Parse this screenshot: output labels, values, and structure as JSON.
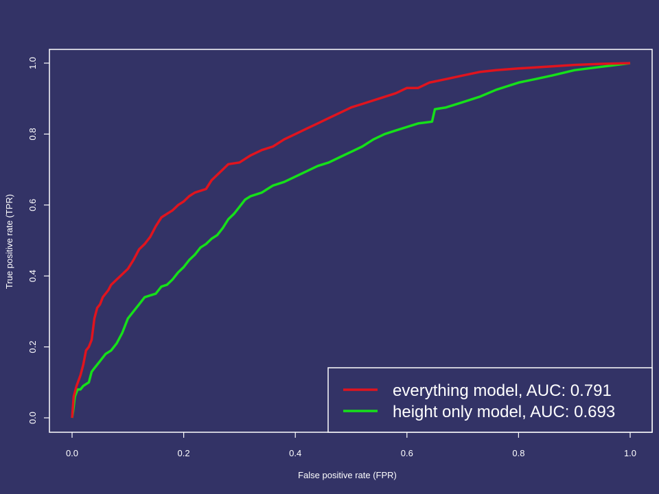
{
  "colors": {
    "background": "#333366",
    "foreground": "#ffffff",
    "everything": "#e0141e",
    "height_only": "#16e01a"
  },
  "chart_data": {
    "type": "line",
    "title": "",
    "xlabel": "False positive rate (FPR)",
    "ylabel": "True positive rate (TPR)",
    "xlim": [
      0,
      1
    ],
    "ylim": [
      0,
      1
    ],
    "x_ticks": [
      "0.0",
      "0.2",
      "0.4",
      "0.6",
      "0.8",
      "1.0"
    ],
    "y_ticks": [
      "0.0",
      "0.2",
      "0.4",
      "0.6",
      "0.8",
      "1.0"
    ],
    "grid": false,
    "legend_position": "bottom-right",
    "series": [
      {
        "name": "everything model, AUC:  0.791",
        "color": "#e0141e",
        "points": [
          [
            0,
            0
          ],
          [
            0.003,
            0.06
          ],
          [
            0.008,
            0.09
          ],
          [
            0.015,
            0.12
          ],
          [
            0.02,
            0.15
          ],
          [
            0.025,
            0.19
          ],
          [
            0.03,
            0.2
          ],
          [
            0.035,
            0.22
          ],
          [
            0.04,
            0.28
          ],
          [
            0.045,
            0.31
          ],
          [
            0.05,
            0.32
          ],
          [
            0.055,
            0.34
          ],
          [
            0.065,
            0.36
          ],
          [
            0.07,
            0.375
          ],
          [
            0.08,
            0.39
          ],
          [
            0.09,
            0.405
          ],
          [
            0.1,
            0.42
          ],
          [
            0.11,
            0.445
          ],
          [
            0.12,
            0.475
          ],
          [
            0.13,
            0.49
          ],
          [
            0.14,
            0.51
          ],
          [
            0.15,
            0.54
          ],
          [
            0.16,
            0.565
          ],
          [
            0.17,
            0.575
          ],
          [
            0.18,
            0.585
          ],
          [
            0.19,
            0.6
          ],
          [
            0.2,
            0.61
          ],
          [
            0.21,
            0.625
          ],
          [
            0.22,
            0.635
          ],
          [
            0.23,
            0.64
          ],
          [
            0.24,
            0.645
          ],
          [
            0.25,
            0.67
          ],
          [
            0.26,
            0.685
          ],
          [
            0.27,
            0.7
          ],
          [
            0.28,
            0.715
          ],
          [
            0.3,
            0.72
          ],
          [
            0.32,
            0.74
          ],
          [
            0.34,
            0.755
          ],
          [
            0.36,
            0.765
          ],
          [
            0.38,
            0.785
          ],
          [
            0.4,
            0.8
          ],
          [
            0.42,
            0.815
          ],
          [
            0.44,
            0.83
          ],
          [
            0.46,
            0.845
          ],
          [
            0.48,
            0.86
          ],
          [
            0.5,
            0.875
          ],
          [
            0.52,
            0.885
          ],
          [
            0.55,
            0.9
          ],
          [
            0.58,
            0.915
          ],
          [
            0.6,
            0.93
          ],
          [
            0.62,
            0.93
          ],
          [
            0.64,
            0.945
          ],
          [
            0.67,
            0.955
          ],
          [
            0.7,
            0.965
          ],
          [
            0.73,
            0.975
          ],
          [
            0.76,
            0.98
          ],
          [
            0.8,
            0.985
          ],
          [
            0.85,
            0.99
          ],
          [
            0.9,
            0.995
          ],
          [
            0.95,
            0.998
          ],
          [
            1,
            1
          ]
        ]
      },
      {
        "name": "height only model, AUC:  0.693",
        "color": "#16e01a",
        "points": [
          [
            0,
            0
          ],
          [
            0.002,
            0.02
          ],
          [
            0.005,
            0.06
          ],
          [
            0.01,
            0.08
          ],
          [
            0.015,
            0.08
          ],
          [
            0.02,
            0.09
          ],
          [
            0.025,
            0.095
          ],
          [
            0.03,
            0.1
          ],
          [
            0.035,
            0.13
          ],
          [
            0.04,
            0.14
          ],
          [
            0.05,
            0.16
          ],
          [
            0.06,
            0.18
          ],
          [
            0.07,
            0.19
          ],
          [
            0.08,
            0.21
          ],
          [
            0.09,
            0.24
          ],
          [
            0.1,
            0.28
          ],
          [
            0.11,
            0.3
          ],
          [
            0.12,
            0.32
          ],
          [
            0.13,
            0.34
          ],
          [
            0.14,
            0.345
          ],
          [
            0.15,
            0.35
          ],
          [
            0.16,
            0.37
          ],
          [
            0.17,
            0.375
          ],
          [
            0.18,
            0.39
          ],
          [
            0.19,
            0.41
          ],
          [
            0.2,
            0.425
          ],
          [
            0.21,
            0.445
          ],
          [
            0.22,
            0.46
          ],
          [
            0.23,
            0.48
          ],
          [
            0.24,
            0.49
          ],
          [
            0.25,
            0.505
          ],
          [
            0.26,
            0.515
          ],
          [
            0.27,
            0.535
          ],
          [
            0.28,
            0.56
          ],
          [
            0.29,
            0.575
          ],
          [
            0.3,
            0.595
          ],
          [
            0.31,
            0.615
          ],
          [
            0.32,
            0.625
          ],
          [
            0.33,
            0.63
          ],
          [
            0.34,
            0.635
          ],
          [
            0.35,
            0.645
          ],
          [
            0.36,
            0.655
          ],
          [
            0.37,
            0.66
          ],
          [
            0.38,
            0.665
          ],
          [
            0.4,
            0.68
          ],
          [
            0.42,
            0.695
          ],
          [
            0.44,
            0.71
          ],
          [
            0.46,
            0.72
          ],
          [
            0.48,
            0.735
          ],
          [
            0.5,
            0.75
          ],
          [
            0.52,
            0.765
          ],
          [
            0.54,
            0.785
          ],
          [
            0.56,
            0.8
          ],
          [
            0.58,
            0.81
          ],
          [
            0.6,
            0.82
          ],
          [
            0.62,
            0.83
          ],
          [
            0.645,
            0.835
          ],
          [
            0.65,
            0.87
          ],
          [
            0.67,
            0.875
          ],
          [
            0.7,
            0.89
          ],
          [
            0.73,
            0.905
          ],
          [
            0.76,
            0.925
          ],
          [
            0.8,
            0.945
          ],
          [
            0.83,
            0.955
          ],
          [
            0.86,
            0.965
          ],
          [
            0.9,
            0.98
          ],
          [
            0.95,
            0.99
          ],
          [
            1,
            1
          ]
        ]
      }
    ]
  }
}
